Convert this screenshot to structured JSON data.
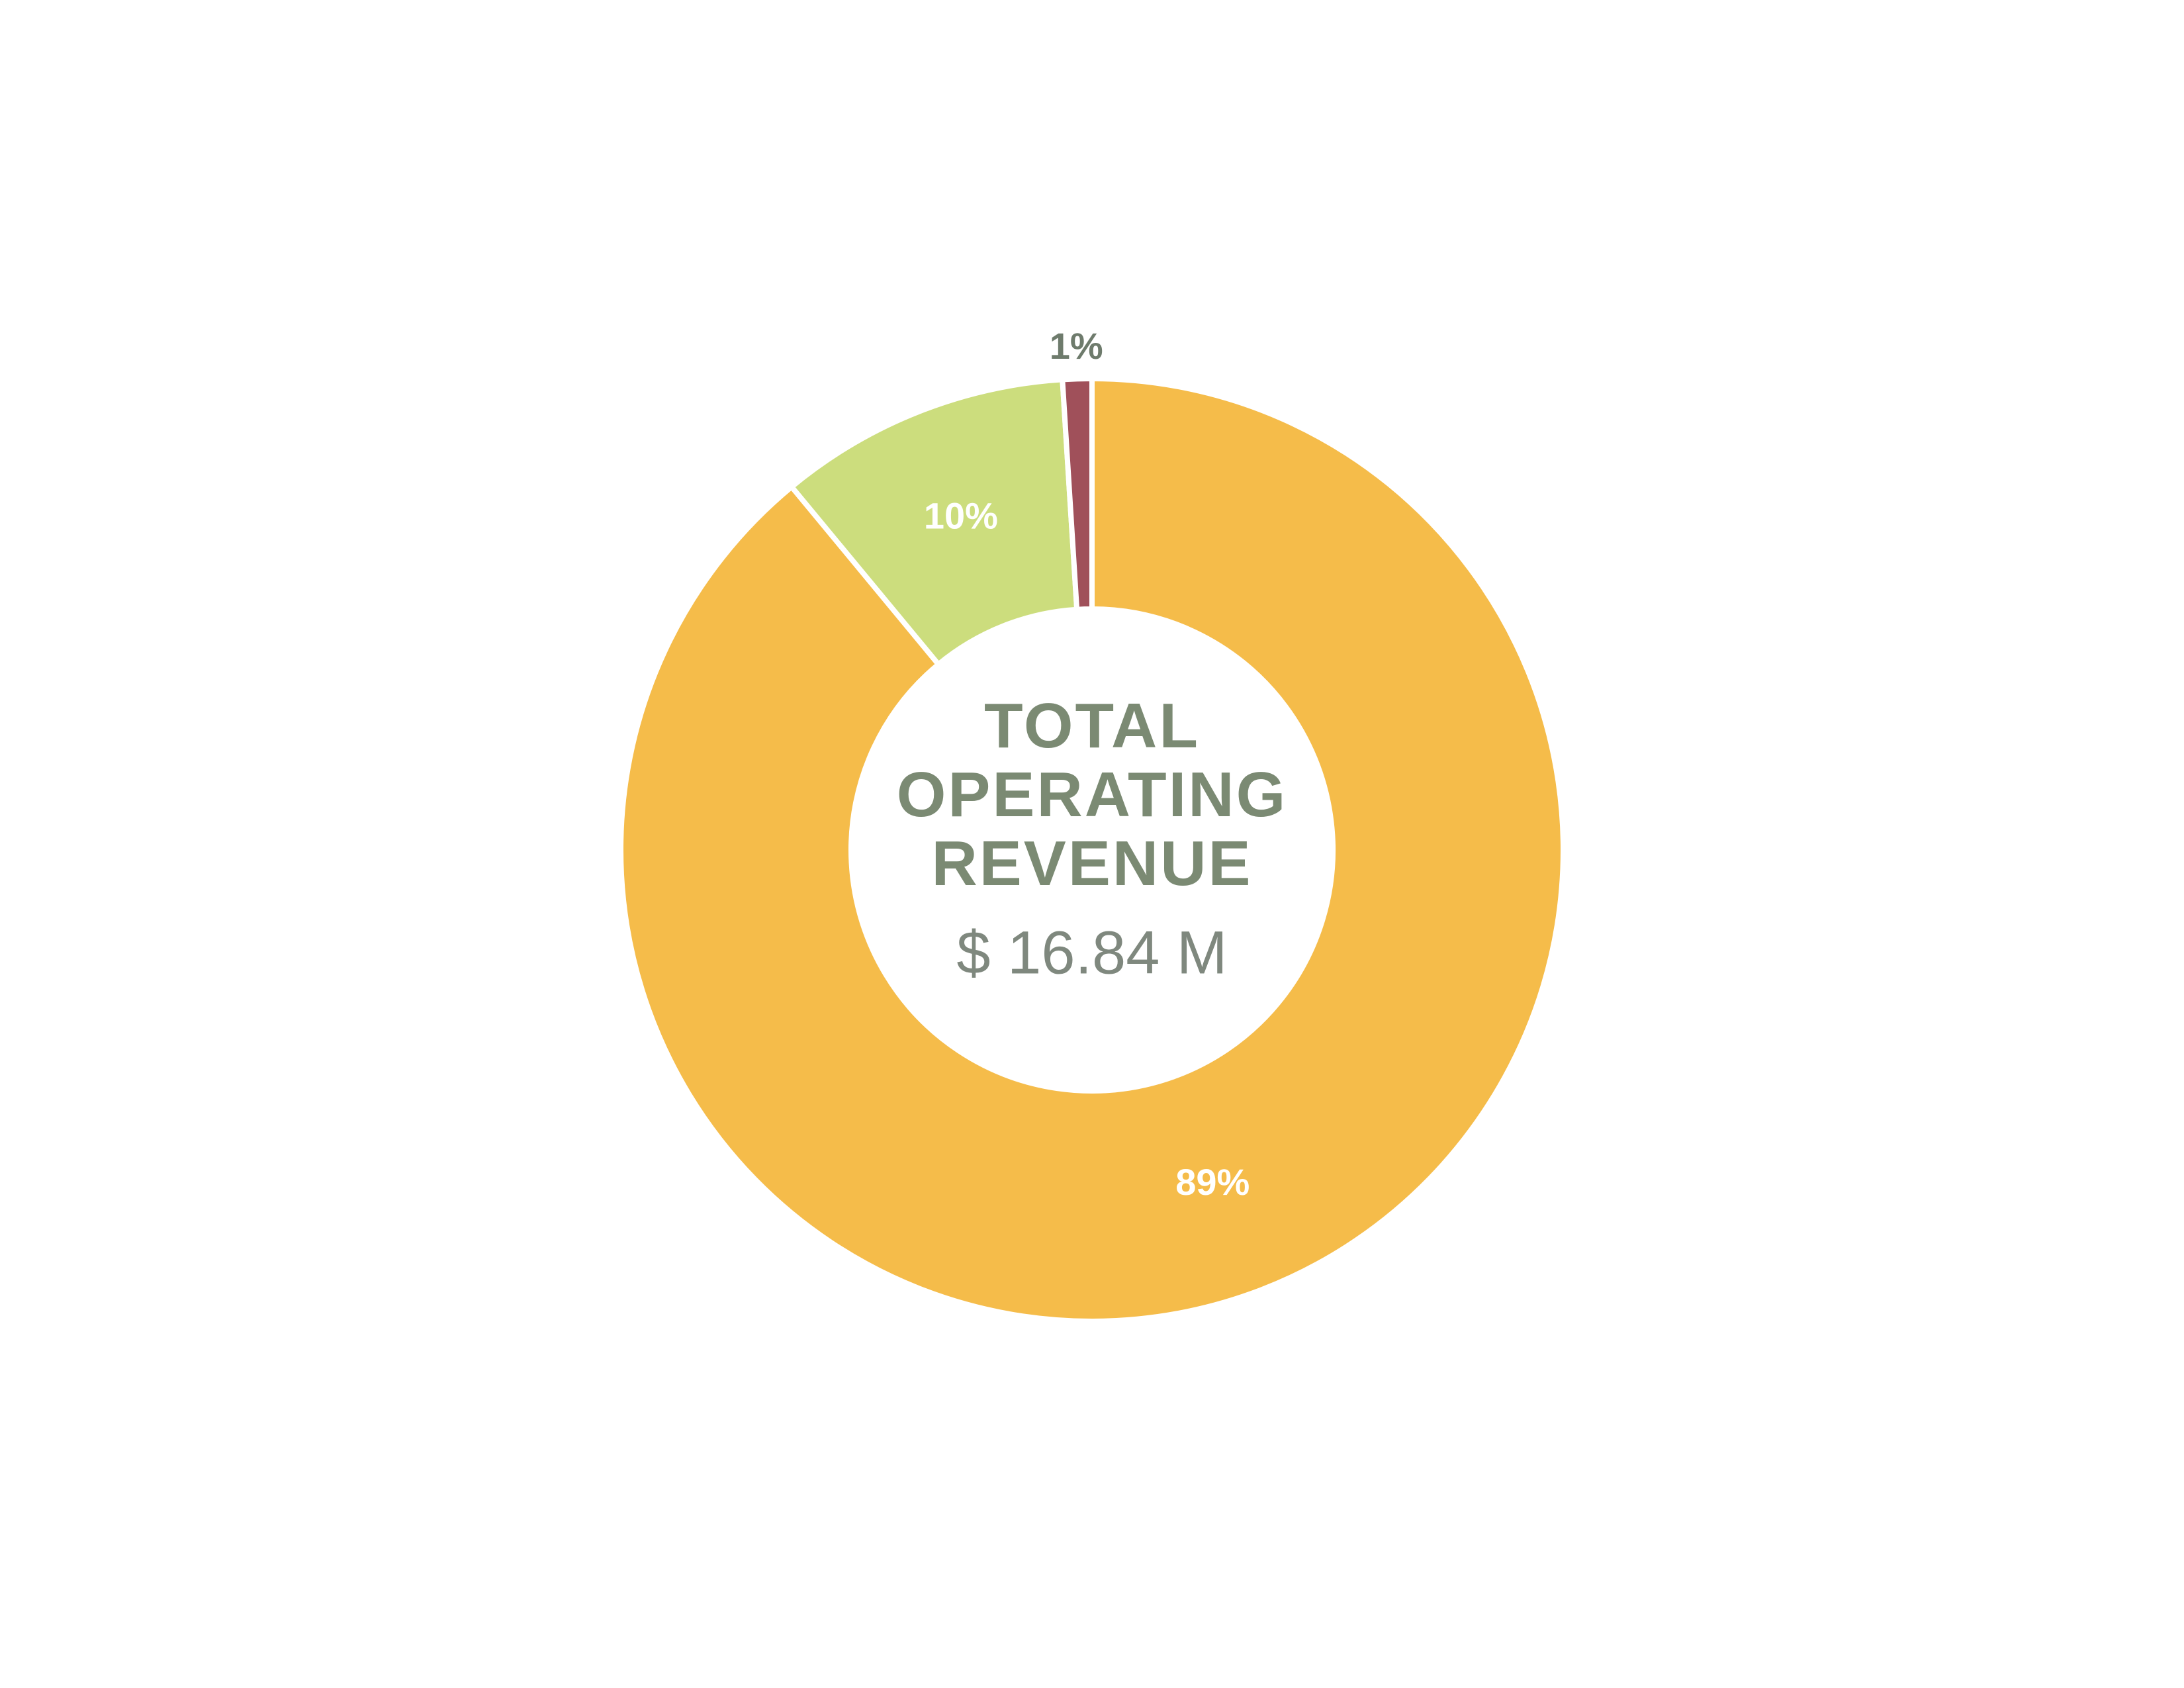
{
  "chart_data": {
    "type": "donut",
    "title": "TOTAL OPERATING REVENUE",
    "subtitle": "$ 16.84 M",
    "categories": [
      null,
      null,
      null
    ],
    "values": [
      89,
      10,
      1
    ],
    "value_labels": [
      "89%",
      "10%",
      "1%"
    ],
    "colors": [
      "#f5bc4a",
      "#ccdd7d",
      "#a0505a"
    ]
  }
}
